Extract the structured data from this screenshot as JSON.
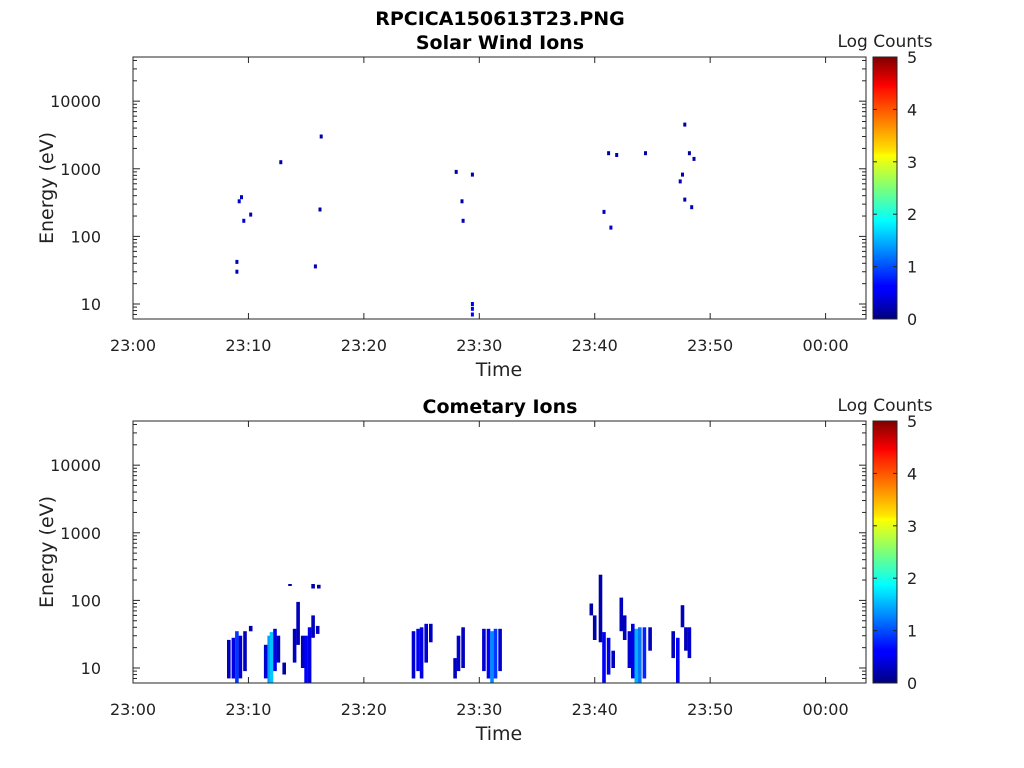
{
  "figure": {
    "title": "RPCICA150613T23.PNG"
  },
  "chart_data": [
    {
      "type": "heatmap",
      "title": "Solar Wind Ions",
      "xlabel": "Time",
      "ylabel": "Energy (eV)",
      "x_ticks": [
        "23:00",
        "23:10",
        "23:20",
        "23:30",
        "23:40",
        "23:50",
        "00:00"
      ],
      "xlim_minutes": [
        0,
        63.5
      ],
      "y_scale": "log",
      "y_ticks": [
        "10",
        "100",
        "1000",
        "10000"
      ],
      "ylim": [
        6,
        45000
      ],
      "colorbar": {
        "label": "Log Counts",
        "range": [
          0,
          5
        ],
        "ticks": [
          "0",
          "1",
          "2",
          "3",
          "4",
          "5"
        ],
        "colormap": "jet"
      },
      "points": [
        [
          9.0,
          30,
          0.3
        ],
        [
          9.0,
          42,
          0.3
        ],
        [
          9.2,
          330,
          0.3
        ],
        [
          9.4,
          380,
          0.3
        ],
        [
          9.6,
          170,
          0.4
        ],
        [
          10.2,
          210,
          0.3
        ],
        [
          12.8,
          1250,
          0.2
        ],
        [
          15.8,
          36,
          0.3
        ],
        [
          16.2,
          250,
          0.2
        ],
        [
          16.3,
          3000,
          0.2
        ],
        [
          28.0,
          900,
          0.2
        ],
        [
          28.5,
          330,
          0.2
        ],
        [
          28.6,
          170,
          0.3
        ],
        [
          29.4,
          820,
          0.2
        ],
        [
          29.4,
          7,
          0.6
        ],
        [
          29.4,
          8.5,
          0.6
        ],
        [
          29.4,
          10,
          0.5
        ],
        [
          40.8,
          230,
          0.3
        ],
        [
          41.2,
          1700,
          0.2
        ],
        [
          41.4,
          135,
          0.4
        ],
        [
          41.9,
          1600,
          0.2
        ],
        [
          44.4,
          1700,
          0.2
        ],
        [
          47.4,
          650,
          0.3
        ],
        [
          47.6,
          820,
          0.3
        ],
        [
          47.8,
          4500,
          0.2
        ],
        [
          47.8,
          350,
          0.2
        ],
        [
          48.2,
          1700,
          0.2
        ],
        [
          48.4,
          270,
          0.3
        ],
        [
          48.6,
          1400,
          0.2
        ]
      ]
    },
    {
      "type": "heatmap",
      "title": "Cometary Ions",
      "xlabel": "Time",
      "ylabel": "Energy (eV)",
      "x_ticks": [
        "23:00",
        "23:10",
        "23:20",
        "23:30",
        "23:40",
        "23:50",
        "00:00"
      ],
      "xlim_minutes": [
        0,
        63.5
      ],
      "y_scale": "log",
      "y_ticks": [
        "10",
        "100",
        "1000",
        "10000"
      ],
      "ylim": [
        6,
        45000
      ],
      "colorbar": {
        "label": "Log Counts",
        "range": [
          0,
          5
        ],
        "ticks": [
          "0",
          "1",
          "2",
          "3",
          "4",
          "5"
        ],
        "colormap": "jet"
      },
      "columns": [
        [
          8.3,
          7,
          26,
          0.3
        ],
        [
          8.7,
          7,
          28,
          0.5
        ],
        [
          9.0,
          6,
          35,
          0.9
        ],
        [
          9.3,
          7,
          30,
          0.4
        ],
        [
          9.7,
          9,
          35,
          0.3
        ],
        [
          10.2,
          35,
          42,
          0.2
        ],
        [
          11.5,
          7,
          22,
          0.4
        ],
        [
          11.8,
          6,
          30,
          1.4
        ],
        [
          12.0,
          6,
          34,
          1.6
        ],
        [
          12.3,
          9,
          38,
          0.5
        ],
        [
          12.6,
          12,
          30,
          0.3
        ],
        [
          13.1,
          8,
          12,
          0.2
        ],
        [
          14.0,
          12,
          38,
          0.3
        ],
        [
          14.3,
          22,
          95,
          0.3
        ],
        [
          14.7,
          10,
          30,
          0.3
        ],
        [
          15.0,
          6,
          30,
          0.6
        ],
        [
          15.3,
          6,
          40,
          0.5
        ],
        [
          15.6,
          28,
          60,
          0.3
        ],
        [
          16.0,
          32,
          42,
          0.3
        ],
        [
          15.6,
          150,
          175,
          0.2
        ],
        [
          16.1,
          150,
          170,
          0.2
        ],
        [
          13.6,
          165,
          175,
          0.2
        ],
        [
          24.3,
          7,
          35,
          0.4
        ],
        [
          24.7,
          9,
          38,
          0.6
        ],
        [
          25.0,
          7,
          40,
          0.5
        ],
        [
          25.4,
          12,
          45,
          0.4
        ],
        [
          25.8,
          24,
          45,
          0.3
        ],
        [
          27.9,
          7,
          14,
          0.3
        ],
        [
          28.2,
          9,
          30,
          0.4
        ],
        [
          28.6,
          10,
          40,
          0.3
        ],
        [
          30.4,
          9,
          38,
          0.4
        ],
        [
          30.8,
          7,
          38,
          0.6
        ],
        [
          31.1,
          6,
          35,
          1.3
        ],
        [
          31.4,
          7,
          38,
          0.9
        ],
        [
          31.8,
          9,
          38,
          0.4
        ],
        [
          39.7,
          60,
          90,
          0.2
        ],
        [
          40.0,
          26,
          60,
          0.2
        ],
        [
          40.5,
          24,
          240,
          0.2
        ],
        [
          40.8,
          6,
          34,
          0.6
        ],
        [
          41.2,
          8,
          28,
          0.5
        ],
        [
          41.6,
          10,
          18,
          0.3
        ],
        [
          42.3,
          35,
          110,
          0.3
        ],
        [
          42.6,
          26,
          60,
          0.3
        ],
        [
          43.0,
          10,
          35,
          0.4
        ],
        [
          43.3,
          7,
          45,
          0.5
        ],
        [
          43.6,
          6,
          38,
          1.5
        ],
        [
          43.9,
          6,
          40,
          1.2
        ],
        [
          44.3,
          7,
          40,
          0.8
        ],
        [
          44.8,
          18,
          40,
          0.3
        ],
        [
          46.8,
          14,
          35,
          0.3
        ],
        [
          47.2,
          6,
          28,
          0.6
        ],
        [
          47.6,
          40,
          85,
          0.3
        ],
        [
          47.9,
          18,
          40,
          0.3
        ],
        [
          48.2,
          14,
          40,
          0.4
        ]
      ]
    }
  ]
}
